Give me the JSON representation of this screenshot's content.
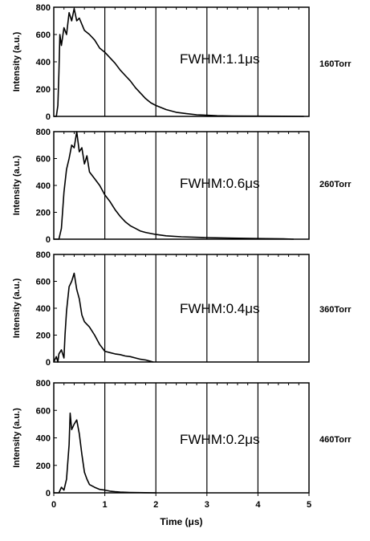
{
  "chart_data": [
    {
      "type": "line",
      "ylabel": "Intensity (a.u.)",
      "annotation": "FWHM:1.1μs",
      "side_label": "160Torr",
      "xlim": [
        0,
        5
      ],
      "ylim": [
        0,
        800
      ],
      "x_ticks": [
        0,
        1,
        2,
        3,
        4,
        5
      ],
      "y_ticks": [
        "0",
        "200",
        "400",
        "600",
        "800"
      ],
      "series": [
        {
          "x": [
            0,
            0.05,
            0.08,
            0.1,
            0.12,
            0.15,
            0.2,
            0.25,
            0.3,
            0.35,
            0.4,
            0.45,
            0.5,
            0.6,
            0.7,
            0.8,
            0.9,
            1.0,
            1.1,
            1.2,
            1.3,
            1.4,
            1.5,
            1.6,
            1.7,
            1.8,
            1.9,
            2.0,
            2.2,
            2.4,
            2.6,
            2.8,
            3.0,
            3.2,
            3.5,
            4.0,
            4.5,
            4.9
          ],
          "y": [
            0,
            0,
            80,
            320,
            600,
            520,
            650,
            600,
            760,
            700,
            790,
            700,
            720,
            630,
            600,
            560,
            500,
            470,
            430,
            390,
            340,
            300,
            260,
            210,
            170,
            130,
            100,
            80,
            50,
            30,
            20,
            12,
            8,
            5,
            3,
            2,
            1,
            0
          ]
        }
      ]
    },
    {
      "type": "line",
      "ylabel": "Intensity (a.u.)",
      "annotation": "FWHM:0.6μs",
      "side_label": "260Torr",
      "xlim": [
        0,
        5
      ],
      "ylim": [
        0,
        800
      ],
      "x_ticks": [
        0,
        1,
        2,
        3,
        4,
        5
      ],
      "y_ticks": [
        "0",
        "200",
        "400",
        "600",
        "800"
      ],
      "series": [
        {
          "x": [
            0,
            0.1,
            0.15,
            0.2,
            0.25,
            0.3,
            0.35,
            0.4,
            0.45,
            0.5,
            0.55,
            0.6,
            0.65,
            0.7,
            0.8,
            0.9,
            1.0,
            1.1,
            1.2,
            1.3,
            1.4,
            1.5,
            1.6,
            1.7,
            1.8,
            2.0,
            2.2,
            2.5,
            3.0,
            3.5,
            4.0,
            4.5,
            4.7
          ],
          "y": [
            0,
            0,
            80,
            350,
            520,
            600,
            700,
            680,
            800,
            650,
            680,
            560,
            620,
            500,
            450,
            400,
            330,
            280,
            220,
            170,
            130,
            100,
            80,
            60,
            50,
            35,
            25,
            18,
            12,
            8,
            5,
            3,
            0
          ]
        }
      ]
    },
    {
      "type": "line",
      "ylabel": "Intensity (a.u.)",
      "annotation": "FWHM:0.4μs",
      "side_label": "360Torr",
      "xlim": [
        0,
        5
      ],
      "ylim": [
        0,
        800
      ],
      "x_ticks": [
        0,
        1,
        2,
        3,
        4,
        5
      ],
      "y_ticks": [
        "0",
        "200",
        "400",
        "600",
        "800"
      ],
      "series": [
        {
          "x": [
            0,
            0.05,
            0.08,
            0.1,
            0.15,
            0.2,
            0.22,
            0.25,
            0.3,
            0.35,
            0.4,
            0.45,
            0.5,
            0.55,
            0.6,
            0.65,
            0.7,
            0.8,
            0.9,
            1.0,
            1.1,
            1.2,
            1.3,
            1.4,
            1.5,
            1.6,
            1.7,
            1.8,
            1.9,
            1.95
          ],
          "y": [
            0,
            40,
            0,
            60,
            90,
            30,
            200,
            380,
            560,
            600,
            660,
            540,
            470,
            350,
            300,
            280,
            260,
            200,
            130,
            80,
            70,
            60,
            55,
            45,
            40,
            30,
            20,
            15,
            5,
            0
          ]
        }
      ]
    },
    {
      "type": "line",
      "ylabel": "Intensity (a.u.)",
      "annotation": "FWHM:0.2μs",
      "side_label": "460Torr",
      "xlim": [
        0,
        5
      ],
      "ylim": [
        0,
        800
      ],
      "x_ticks": [
        "0",
        "1",
        "2",
        "3",
        "4",
        "5"
      ],
      "y_ticks": [
        "0",
        "200",
        "400",
        "600",
        "800"
      ],
      "xlabel": "Time (μs)",
      "series": [
        {
          "x": [
            0,
            0.1,
            0.15,
            0.2,
            0.25,
            0.3,
            0.32,
            0.35,
            0.4,
            0.45,
            0.5,
            0.55,
            0.6,
            0.65,
            0.7,
            0.8,
            0.9,
            1.0,
            1.1,
            1.2,
            1.3,
            1.5,
            1.8,
            2.0
          ],
          "y": [
            0,
            0,
            40,
            20,
            100,
            350,
            580,
            460,
            500,
            530,
            430,
            280,
            150,
            100,
            60,
            40,
            25,
            20,
            12,
            8,
            5,
            3,
            1,
            0
          ]
        }
      ]
    }
  ]
}
